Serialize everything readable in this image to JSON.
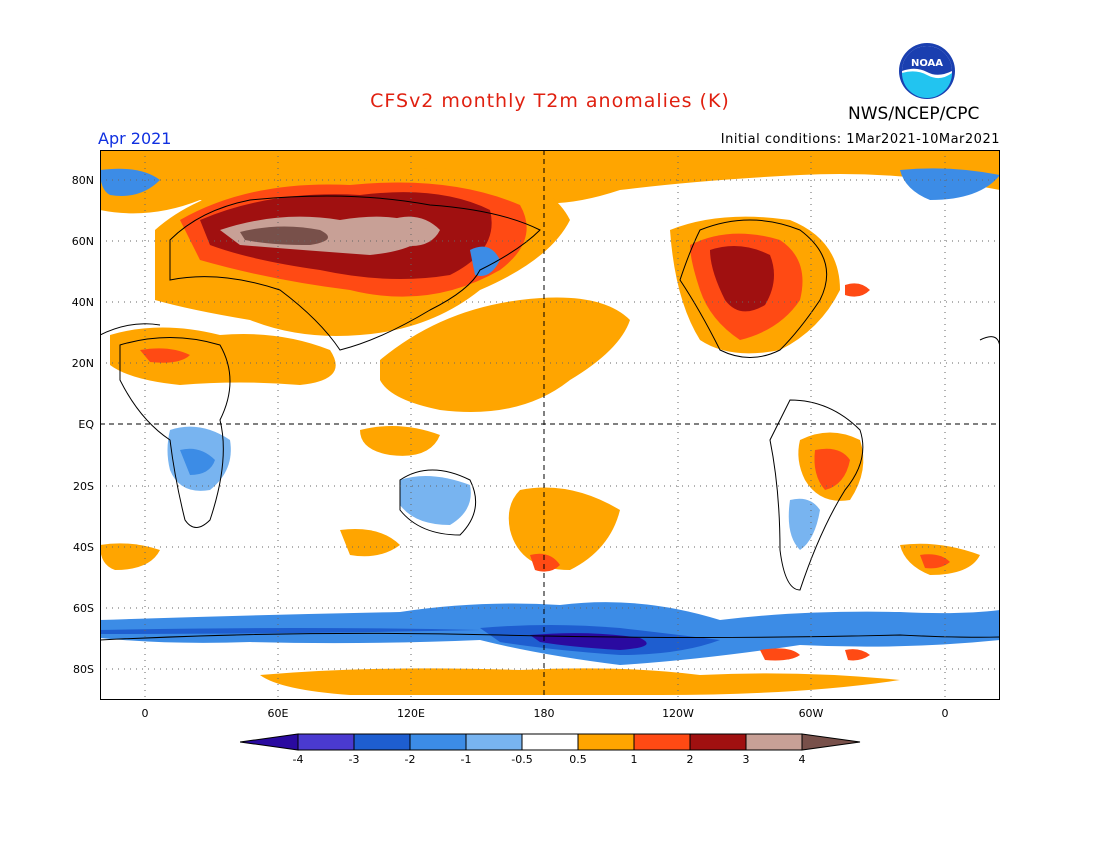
{
  "header": {
    "title": "CFSv2 monthly T2m anomalies (K)",
    "period": "Apr 2021",
    "initial_conditions": "Initial conditions: 1Mar2021-10Mar2021",
    "organization": "NWS/NCEP/CPC",
    "logo_text": "NOAA"
  },
  "map": {
    "projection": "cylindrical equidistant",
    "lat_labels": [
      "80N",
      "60N",
      "40N",
      "20N",
      "EQ",
      "20S",
      "40S",
      "60S",
      "80S"
    ],
    "lon_labels": [
      "0",
      "60E",
      "120E",
      "180",
      "120W",
      "60W",
      "0"
    ],
    "grid": "dotted",
    "dashed_lines": [
      "EQ",
      "180"
    ]
  },
  "colorbar": {
    "tick_labels": [
      "-4",
      "-3",
      "-2",
      "-1",
      "-0.5",
      "0.5",
      "1",
      "2",
      "3",
      "4"
    ],
    "colors": [
      "#2a0aa0",
      "#4a3ad0",
      "#1e5ed0",
      "#3c8ce6",
      "#78b4f0",
      "#ffffff",
      "#ffa500",
      "#ff4a14",
      "#a01010",
      "#c8a096",
      "#78504a"
    ]
  },
  "colors": {
    "cold4": "#2a0aa0",
    "cold3": "#4a3ad0",
    "cold2": "#1e5ed0",
    "cold1": "#3c8ce6",
    "cold05": "#78b4f0",
    "warm05": "#ffa500",
    "warm1": "#ff4a14",
    "warm2": "#a01010",
    "warm3": "#c8a096",
    "warm4": "#78504a"
  }
}
